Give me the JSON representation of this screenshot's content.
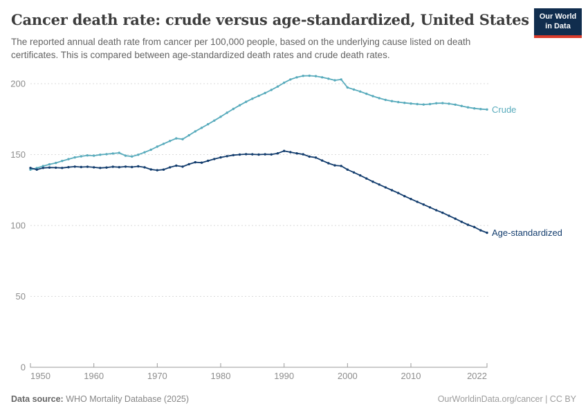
{
  "header": {
    "title": "Cancer death rate: crude versus age-standardized, United States",
    "subtitle_lines": [
      "The reported annual death rate from cancer per 100,000 people, based on the underlying cause listed on death",
      "certificates. This is compared between age-standardized death rates and crude death rates."
    ],
    "logo": {
      "line1": "Our World",
      "line2": "in Data",
      "bg_color": "#102d4e",
      "accent_color": "#d93b2b"
    }
  },
  "footer": {
    "source_label": "Data source:",
    "source_value": " WHO Mortality Database (2025)",
    "attribution": "OurWorldinData.org/cancer | CC BY"
  },
  "chart_data": {
    "type": "line",
    "title": "Cancer death rate: crude versus age-standardized, United States",
    "xlabel": "",
    "ylabel": "",
    "unit": "deaths per 100,000 people",
    "xlim": [
      1950,
      2022
    ],
    "ylim": [
      0,
      200
    ],
    "xticks": [
      1950,
      1960,
      1970,
      1980,
      1990,
      2000,
      2010,
      2022
    ],
    "yticks": [
      0,
      50,
      100,
      150,
      200
    ],
    "grid": "horizontal-dashed",
    "legend": "line-end-labels",
    "axis_color": "#999999",
    "grid_color": "#dadada",
    "tick_label_color": "#8d8d8d",
    "x": [
      1950,
      1951,
      1952,
      1953,
      1954,
      1955,
      1956,
      1957,
      1958,
      1959,
      1960,
      1961,
      1962,
      1963,
      1964,
      1965,
      1966,
      1967,
      1968,
      1969,
      1970,
      1971,
      1972,
      1973,
      1974,
      1975,
      1976,
      1977,
      1978,
      1979,
      1980,
      1981,
      1982,
      1983,
      1984,
      1985,
      1986,
      1987,
      1988,
      1989,
      1990,
      1991,
      1992,
      1993,
      1994,
      1995,
      1996,
      1997,
      1998,
      1999,
      2000,
      2001,
      2002,
      2003,
      2004,
      2005,
      2006,
      2007,
      2008,
      2009,
      2010,
      2011,
      2012,
      2013,
      2014,
      2015,
      2016,
      2017,
      2018,
      2019,
      2020,
      2021,
      2022
    ],
    "series": [
      {
        "name": "Crude",
        "color": "#58abbc",
        "values": [
          139.4,
          140.5,
          141.9,
          143.1,
          144.1,
          145.5,
          146.8,
          148.0,
          148.8,
          149.4,
          149.2,
          149.9,
          150.3,
          150.8,
          151.2,
          149.2,
          148.7,
          149.9,
          151.6,
          153.4,
          155.6,
          157.6,
          159.6,
          161.4,
          160.9,
          163.6,
          166.4,
          168.9,
          171.4,
          174.0,
          176.7,
          179.5,
          182.2,
          184.8,
          187.2,
          189.4,
          191.4,
          193.4,
          195.6,
          198.0,
          200.7,
          203.0,
          204.5,
          205.5,
          205.6,
          205.3,
          204.5,
          203.5,
          202.4,
          203.0,
          197.3,
          195.9,
          194.5,
          192.9,
          191.2,
          189.8,
          188.6,
          187.7,
          187.0,
          186.5,
          186.0,
          185.6,
          185.3,
          185.6,
          186.2,
          186.3,
          185.9,
          185.2,
          184.3,
          183.3,
          182.6,
          182.1,
          181.8
        ]
      },
      {
        "name": "Age-standardized",
        "color": "#123c6d",
        "values": [
          140.6,
          139.4,
          140.6,
          140.9,
          140.8,
          140.6,
          141.1,
          141.5,
          141.2,
          141.4,
          141.0,
          140.6,
          140.9,
          141.4,
          141.1,
          141.5,
          141.2,
          141.7,
          141.0,
          139.5,
          139.0,
          139.4,
          141.0,
          142.2,
          141.5,
          143.2,
          144.6,
          144.3,
          145.6,
          146.9,
          148.0,
          148.9,
          149.6,
          150.0,
          150.3,
          150.2,
          150.0,
          150.2,
          150.1,
          150.9,
          152.6,
          151.7,
          150.9,
          150.2,
          148.6,
          147.9,
          145.8,
          143.9,
          142.4,
          142.0,
          139.4,
          137.4,
          135.3,
          133.1,
          130.9,
          128.9,
          126.9,
          124.9,
          122.9,
          120.7,
          118.7,
          116.7,
          114.8,
          112.8,
          110.8,
          109.0,
          106.9,
          104.8,
          102.6,
          100.5,
          98.9,
          96.6,
          94.9
        ]
      }
    ]
  }
}
